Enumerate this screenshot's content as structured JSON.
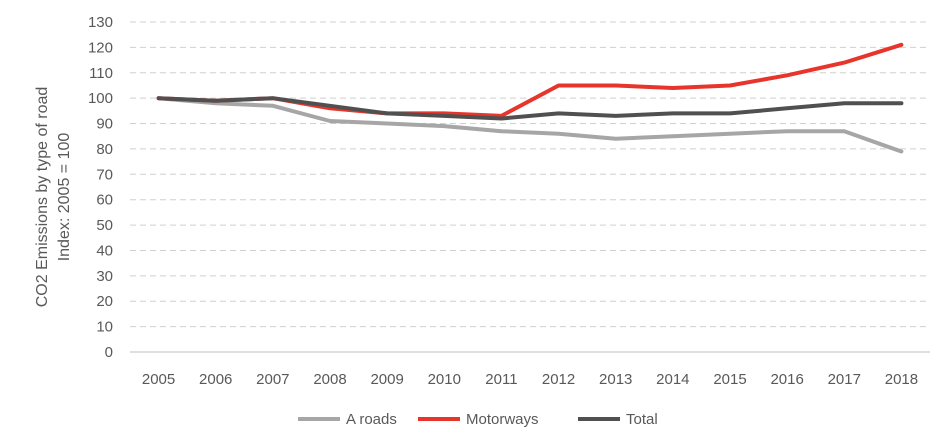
{
  "chart_data": {
    "type": "line",
    "title": "",
    "xlabel": "",
    "ylabel_lines": [
      "CO2 Emissions by type of road",
      "Index: 2005 = 100"
    ],
    "x": [
      "2005",
      "2006",
      "2007",
      "2008",
      "2009",
      "2010",
      "2011",
      "2012",
      "2013",
      "2014",
      "2015",
      "2016",
      "2017",
      "2018"
    ],
    "yticks": [
      0,
      10,
      20,
      30,
      40,
      50,
      60,
      70,
      80,
      90,
      100,
      110,
      120,
      130
    ],
    "ylim": [
      0,
      130
    ],
    "grid": true,
    "legend_position": "bottom",
    "series": [
      {
        "name": "A roads",
        "color": "#a6a6a6",
        "values": [
          100,
          98,
          97,
          91,
          90,
          89,
          87,
          86,
          84,
          85,
          86,
          87,
          87,
          79
        ]
      },
      {
        "name": "Motorways",
        "color": "#e8352b",
        "values": [
          100,
          99,
          100,
          96,
          94,
          94,
          93,
          105,
          105,
          104,
          105,
          109,
          114,
          121
        ]
      },
      {
        "name": "Total",
        "color": "#505050",
        "values": [
          100,
          99,
          100,
          97,
          94,
          93,
          92,
          94,
          93,
          94,
          94,
          96,
          98,
          98
        ]
      }
    ]
  }
}
